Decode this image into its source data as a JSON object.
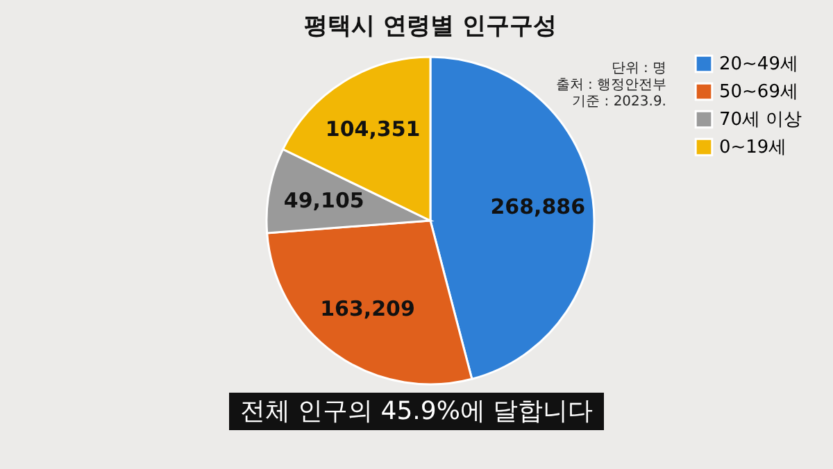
{
  "chart_data": {
    "type": "pie",
    "title": "평택시 연령별 인구구성",
    "categories": [
      "20~49세",
      "50~69세",
      "70세 이상",
      "0~19세"
    ],
    "values": [
      268886,
      163209,
      49105,
      104351
    ],
    "colors": [
      "#2e7fd6",
      "#e0601c",
      "#9a9a9a",
      "#f2b705"
    ],
    "value_labels": [
      "268,886",
      "163,209",
      "49,105",
      "104,351"
    ],
    "legend": "right",
    "annotations": [
      "단위 : 명",
      "출처 : 행정안전부",
      "기준 : 2023.9.",
      "전체 인구의 45.9%에 달합니다"
    ]
  }
}
